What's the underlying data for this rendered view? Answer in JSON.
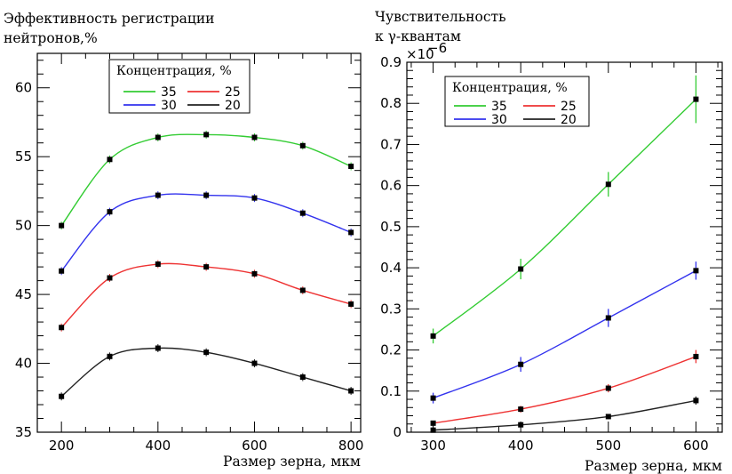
{
  "chart_data": [
    {
      "type": "line",
      "ylabel_lines": [
        "Эффективность регистрации",
        "нейтронов,%"
      ],
      "xlabel": "Размер зерна, мкм",
      "xlim": [
        150,
        820
      ],
      "ylim": [
        35,
        62.5
      ],
      "x_ticks": [
        "200",
        "400",
        "600",
        "800"
      ],
      "y_ticks": [
        "35",
        "40",
        "45",
        "50",
        "55",
        "60"
      ],
      "legend": {
        "title": "Концентрация, %",
        "entries": [
          "35",
          "25",
          "30",
          "20"
        ]
      },
      "series": [
        {
          "name": "35",
          "color": "#33cc33",
          "x": [
            200,
            300,
            400,
            500,
            600,
            700,
            800
          ],
          "y": [
            50.0,
            54.8,
            56.4,
            56.6,
            56.4,
            55.8,
            54.3
          ]
        },
        {
          "name": "30",
          "color": "#3333ee",
          "x": [
            200,
            300,
            400,
            500,
            600,
            700,
            800
          ],
          "y": [
            46.7,
            51.0,
            52.2,
            52.2,
            52.0,
            50.9,
            49.5
          ]
        },
        {
          "name": "25",
          "color": "#ee3333",
          "x": [
            200,
            300,
            400,
            500,
            600,
            700,
            800
          ],
          "y": [
            42.6,
            46.2,
            47.2,
            47.0,
            46.5,
            45.3,
            44.3
          ]
        },
        {
          "name": "20",
          "color": "#222222",
          "x": [
            200,
            300,
            400,
            500,
            600,
            700,
            800
          ],
          "y": [
            37.6,
            40.5,
            41.1,
            40.8,
            40.0,
            39.0,
            38.0
          ]
        }
      ]
    },
    {
      "type": "line",
      "ylabel_lines": [
        "Чувствительность",
        "к γ-квантам"
      ],
      "xlabel": "Размер зерна, мкм",
      "scale_label": "×10",
      "scale_exponent": "−6",
      "xlim": [
        270,
        630
      ],
      "ylim": [
        0,
        0.9
      ],
      "x_ticks": [
        "300",
        "400",
        "500",
        "600"
      ],
      "y_ticks": [
        "0",
        "0.1",
        "0.2",
        "0.3",
        "0.4",
        "0.5",
        "0.6",
        "0.7",
        "0.8",
        "0.9"
      ],
      "legend": {
        "title": "Концентрация, %",
        "entries": [
          "35",
          "25",
          "30",
          "20"
        ]
      },
      "series": [
        {
          "name": "35",
          "color": "#33cc33",
          "x": [
            300,
            400,
            500,
            600
          ],
          "y": [
            0.234,
            0.397,
            0.603,
            0.81
          ],
          "err": [
            0.018,
            0.025,
            0.03,
            0.058
          ]
        },
        {
          "name": "30",
          "color": "#3333ee",
          "x": [
            300,
            400,
            500,
            600
          ],
          "y": [
            0.083,
            0.165,
            0.278,
            0.393
          ],
          "err": [
            0.013,
            0.018,
            0.022,
            0.022
          ]
        },
        {
          "name": "25",
          "color": "#ee3333",
          "x": [
            300,
            400,
            500,
            600
          ],
          "y": [
            0.022,
            0.056,
            0.107,
            0.184
          ],
          "err": [
            0.005,
            0.008,
            0.01,
            0.016
          ]
        },
        {
          "name": "20",
          "color": "#222222",
          "x": [
            300,
            400,
            500,
            600
          ],
          "y": [
            0.005,
            0.018,
            0.038,
            0.077
          ],
          "err": [
            0.003,
            0.004,
            0.006,
            0.01
          ]
        }
      ]
    }
  ]
}
